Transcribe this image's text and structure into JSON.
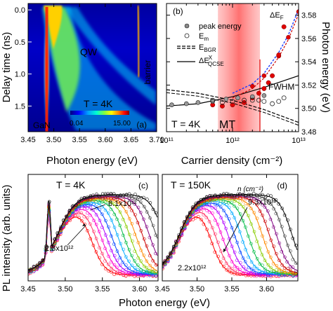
{
  "chart_data": [
    {
      "panel": "(a)",
      "type": "heatmap",
      "xlabel": "Photon energy (eV)",
      "ylabel": "Delay time (ns)",
      "xlim": [
        3.45,
        3.7
      ],
      "ylim": [
        1.9,
        -0.1
      ],
      "xticks": [
        "3.45",
        "3.50",
        "3.55",
        "3.60",
        "3.65",
        "3.70"
      ],
      "yticks": [
        "0.0",
        "0.5",
        "1.0",
        "1.5"
      ],
      "annotations": [
        "QW",
        "T = 4K",
        "GaN",
        "barrier"
      ],
      "colorbar": {
        "min": "0.04",
        "max": "15.00"
      },
      "colormap": [
        "#00007f",
        "#0000ff",
        "#00a0ff",
        "#00ffd0",
        "#80ff40",
        "#ffff00",
        "#ff8000",
        "#ff0000",
        "#7f0000"
      ],
      "features": [
        {
          "name": "GaN",
          "energy_eV": 3.478,
          "description_time_ns": [
            0.0,
            1.9
          ]
        },
        {
          "name": "QW",
          "energy_start_eV": 3.5,
          "energy_end_eV": 3.6
        },
        {
          "name": "barrier",
          "energy_eV": 3.66
        }
      ]
    },
    {
      "panel": "(b)",
      "type": "scatter",
      "xlabel": "Carrier density (cm⁻²)",
      "ylabel": "Photon energy (eV)",
      "xscale": "log",
      "xlim": [
        100000000000.0,
        10000000000000.0
      ],
      "ylim": [
        3.48,
        3.59
      ],
      "xticks": [
        "10¹¹",
        "10¹²",
        "10¹³"
      ],
      "yticks": [
        "3.48",
        "3.50",
        "3.52",
        "3.54",
        "3.56",
        "3.58"
      ],
      "annotations": [
        "T = 4K",
        "MT",
        "FWHM",
        "ΔE_F"
      ],
      "legend": [
        "peak energy",
        "E_m",
        "E_BGR",
        "ΔE^X_QCSE"
      ],
      "series": [
        {
          "name": "peak energy",
          "x": [
            500000000000.0,
            700000000000.0,
            1000000000000.0,
            1500000000000.0,
            2000000000000.0,
            2500000000000.0,
            3000000000000.0,
            3500000000000.0,
            4000000000000.0,
            5000000000000.0,
            6000000000000.0
          ],
          "y": [
            3.503,
            3.502,
            3.503,
            3.505,
            3.509,
            3.513,
            3.517,
            3.522,
            3.528,
            3.545,
            3.57
          ]
        },
        {
          "name": "E_m",
          "x": [
            500000000000.0,
            700000000000.0,
            1000000000000.0,
            1500000000000.0,
            2000000000000.0,
            2500000000000.0,
            3000000000000.0,
            4000000000000.0,
            5000000000000.0,
            6000000000000.0
          ],
          "y": [
            3.507,
            3.505,
            3.506,
            3.507,
            3.507,
            3.507,
            3.506,
            3.504,
            3.506,
            3.509
          ]
        },
        {
          "name": "ΔE^X_QCSE",
          "x": [
            100000000000.0,
            300000000000.0,
            1000000000000.0,
            3000000000000.0,
            10000000000000.0
          ],
          "y": [
            3.502,
            3.504,
            3.51,
            3.518,
            3.528
          ]
        },
        {
          "name": "E_BGR",
          "x": [
            100000000000.0,
            300000000000.0,
            1000000000000.0,
            3000000000000.0,
            10000000000000.0
          ],
          "y": [
            3.516,
            3.513,
            3.507,
            3.499,
            3.488
          ]
        },
        {
          "name": "ΔE_F",
          "x": [
            1000000000000.0,
            2000000000000.0,
            3000000000000.0,
            5000000000000.0,
            7000000000000.0,
            10000000000000.0
          ],
          "y": [
            3.513,
            3.521,
            3.53,
            3.548,
            3.563,
            3.585
          ]
        }
      ]
    },
    {
      "panel": "(c)",
      "type": "line",
      "title": "T = 4K",
      "xlabel": "Photon energy (eV)",
      "ylabel": "PL intensity (arb. units)",
      "yscale": "log",
      "xlim": [
        3.45,
        3.625
      ],
      "xticks": [
        "3.45",
        "3.50",
        "3.55",
        "3.60"
      ],
      "annotations": [
        "8.1x10¹²",
        "2.3x10¹²"
      ],
      "density_range_cm2": [
        2300000000000.0,
        8100000000000.0
      ],
      "series_colors": [
        "#ff0000",
        "#ff3366",
        "#ff00cc",
        "#b000ff",
        "#0044ff",
        "#00aaff",
        "#00bb44",
        "#88cc00",
        "#ff8800",
        "#cc0000",
        "#800080",
        "#444444",
        "#000000"
      ],
      "edge_energies_eV": [
        3.535,
        3.542,
        3.549,
        3.556,
        3.563,
        3.571,
        3.579,
        3.587,
        3.595,
        3.604,
        3.613,
        3.622,
        3.632
      ]
    },
    {
      "panel": "(d)",
      "type": "line",
      "title": "T = 150K",
      "xlabel": "Photon energy (eV)",
      "xlim": [
        3.45,
        3.645
      ],
      "xticks": [
        "3.45",
        "3.50",
        "3.55",
        "3.60"
      ],
      "annotations": [
        "n (cm⁻²)",
        "9.3x10¹²",
        "2.2x10¹²"
      ],
      "density_range_cm2": [
        2200000000000.0,
        9300000000000.0
      ],
      "series_colors": [
        "#ff0000",
        "#ff3366",
        "#ff00cc",
        "#b000ff",
        "#0044ff",
        "#00aaff",
        "#00bb44",
        "#88cc00",
        "#ff8800",
        "#cc0000",
        "#800080",
        "#444444",
        "#000000"
      ],
      "edge_energies_eV": [
        3.52,
        3.528,
        3.537,
        3.546,
        3.555,
        3.564,
        3.574,
        3.584,
        3.594,
        3.604,
        3.614,
        3.625,
        3.636
      ]
    }
  ],
  "labels": {
    "a_panel": "(a)",
    "a_qw": "QW",
    "a_temp": "T = 4K",
    "a_gan": "GaN",
    "a_barrier": "barrier",
    "a_cb_min": "0.04",
    "a_cb_max": "15.00",
    "a_ylabel": "Delay time (ns)",
    "a_xlabel": "Photon energy (eV)",
    "b_panel": "(b)",
    "b_temp": "T = 4K",
    "b_mt": "MT",
    "b_fwhm": "FWHM",
    "b_ylabel": "Photon energy (eV)",
    "b_xlabel": "Carrier density (cm⁻²)",
    "c_panel": "(c)",
    "c_title": "T = 4K",
    "c_high": "8.1x10¹²",
    "c_low": "2.3x10¹²",
    "d_panel": "(d)",
    "d_title": "T = 150K",
    "d_high": "9.3x10¹²",
    "d_low": "2.2x10¹²",
    "d_n": "n (cm⁻²)",
    "cd_ylabel": "PL intensity (arb. units)",
    "cd_xlabel": "Photon energy (eV)"
  }
}
